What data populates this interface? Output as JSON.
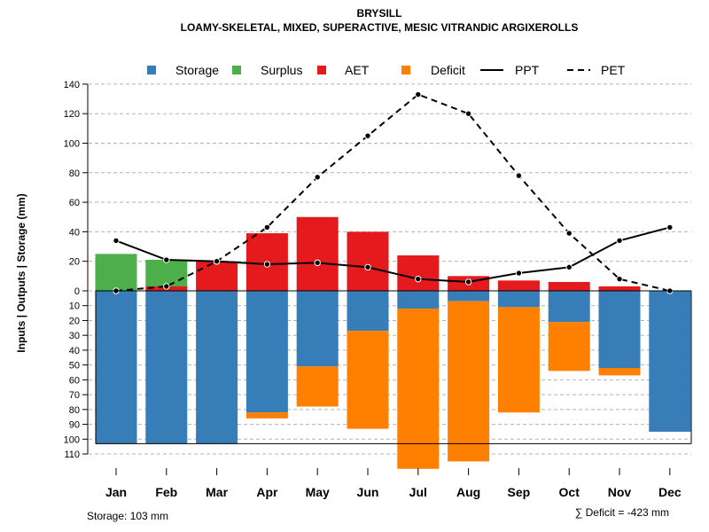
{
  "chart_data": {
    "type": "bar",
    "title": "BRYSILL",
    "subtitle": "LOAMY-SKELETAL, MIXED, SUPERACTIVE, MESIC VITRANDIC ARGIXEROLLS",
    "ylabel": "Inputs | Outputs | Storage     (mm)",
    "categories": [
      "Jan",
      "Feb",
      "Mar",
      "Apr",
      "May",
      "Jun",
      "Jul",
      "Aug",
      "Sep",
      "Oct",
      "Nov",
      "Dec"
    ],
    "upper_ticks": [
      "0",
      "20",
      "40",
      "60",
      "80",
      "100",
      "120",
      "140"
    ],
    "lower_ticks": [
      "10",
      "20",
      "30",
      "40",
      "50",
      "60",
      "70",
      "80",
      "90",
      "100",
      "110"
    ],
    "ylim_upper": [
      0,
      140
    ],
    "ylim_lower": [
      0,
      110
    ],
    "storage_capacity": 103,
    "series": [
      {
        "name": "Storage",
        "values": [
          103,
          103,
          103,
          82,
          51,
          27,
          12,
          7,
          11,
          21,
          52,
          95
        ]
      },
      {
        "name": "Surplus",
        "values": [
          25,
          18,
          0,
          0,
          0,
          0,
          0,
          0,
          0,
          0,
          0,
          0
        ]
      },
      {
        "name": "AET",
        "values": [
          0,
          3,
          20,
          39,
          50,
          40,
          24,
          10,
          7,
          6,
          3,
          0
        ]
      },
      {
        "name": "Deficit",
        "values": [
          0,
          0,
          0,
          4,
          27,
          66,
          108,
          108,
          71,
          33,
          5,
          0
        ]
      },
      {
        "name": "PPT",
        "values": [
          34,
          21,
          20,
          18,
          19,
          16,
          8,
          6,
          12,
          16,
          34,
          43
        ]
      },
      {
        "name": "PET",
        "values": [
          0,
          3,
          20,
          43,
          77,
          105,
          133,
          120,
          78,
          39,
          8,
          0
        ]
      }
    ],
    "legend": [
      {
        "label": "Storage",
        "kind": "box",
        "color": "#377EB8"
      },
      {
        "label": "Surplus",
        "kind": "box",
        "color": "#4DAF4A"
      },
      {
        "label": "AET",
        "kind": "box",
        "color": "#E41A1C"
      },
      {
        "label": "Deficit",
        "kind": "box",
        "color": "#FF7F00"
      },
      {
        "label": "PPT",
        "kind": "solid",
        "color": "#000000"
      },
      {
        "label": "PET",
        "kind": "dashed",
        "color": "#000000"
      }
    ],
    "legend_position": "top",
    "grid": true,
    "storage_note": "Storage: 103 mm",
    "deficit_note": "∑ Deficit = -423 mm"
  }
}
